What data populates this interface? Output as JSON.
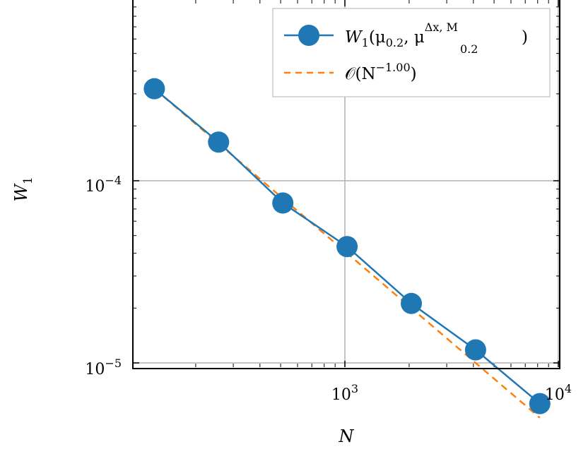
{
  "chart_data": {
    "type": "line",
    "x_scale": "log",
    "y_scale": "log",
    "grid": true,
    "legend_position": "top-right",
    "xlabel": "N",
    "ylabel": "W",
    "ylabel_sub": "1",
    "x_ticks": [
      {
        "value": 1000,
        "base": "10",
        "exp": "3"
      },
      {
        "value": 10000,
        "base": "10",
        "exp": "4"
      }
    ],
    "y_ticks": [
      {
        "value": 1e-05,
        "base": "10",
        "exp": "−5"
      },
      {
        "value": 0.0001,
        "base": "10",
        "exp": "−4"
      }
    ],
    "xlim": [
      100,
      10000
    ],
    "ylim": [
      9.5e-06,
      0.00036
    ],
    "series": [
      {
        "name": "W1(μ0.2, μ0.2^{Δx,M})",
        "color": "#1f77b4",
        "style": "solid-markers",
        "x": [
          128,
          256,
          512,
          1024,
          2048,
          4096,
          8192
        ],
        "y": [
          0.00032,
          0.000163,
          7.55e-05,
          4.35e-05,
          2.12e-05,
          1.18e-05,
          5.98e-06
        ]
      },
      {
        "name": "O(N^−1.00)",
        "color": "#ff7f0e",
        "style": "dashed",
        "x": [
          128,
          8192
        ],
        "y": [
          0.00032,
          5e-06
        ]
      }
    ],
    "legend": {
      "entry1": {
        "main": "W",
        "sub1": "1",
        "open": "(μ",
        "sub2": "0.2",
        "comma": ", μ",
        "sup": "Δx, M",
        "sub3": "0.2",
        "close": ")"
      },
      "entry2": {
        "main": "𝒪(N",
        "sup": "−1.00",
        "close": ")"
      }
    }
  }
}
